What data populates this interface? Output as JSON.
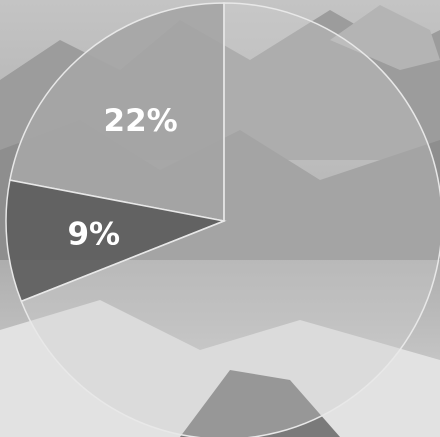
{
  "chart_data": {
    "type": "pie",
    "slices": [
      {
        "value": 22,
        "label": "22%",
        "color": "#a6a6a6"
      },
      {
        "value": 9,
        "label": "9%",
        "color": "#5e5e5e"
      },
      {
        "value": 69,
        "label": "",
        "color": "#cfcfcf"
      }
    ],
    "background": "photo-mountain-landscape-grayscale"
  }
}
